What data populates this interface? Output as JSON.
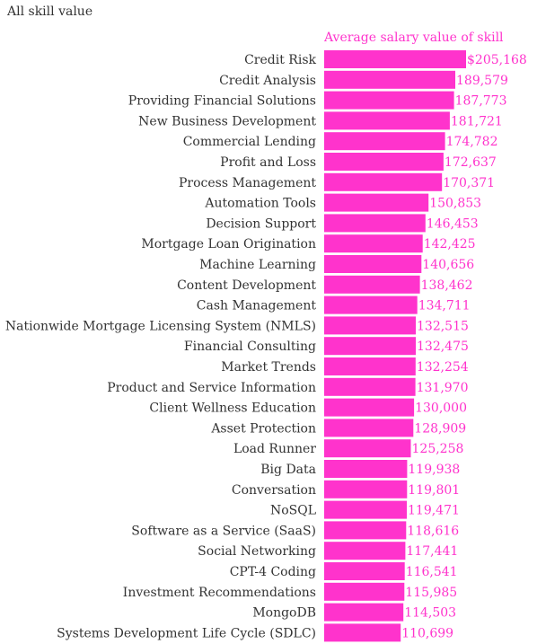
{
  "chart_data": {
    "type": "bar",
    "orientation": "horizontal",
    "title": "All skill value",
    "series": [
      {
        "name": "Average salary value of skill",
        "color": "#ff33cc",
        "values": [
          205168,
          189579,
          187773,
          181721,
          174782,
          172637,
          170371,
          150853,
          146453,
          142425,
          140656,
          138462,
          134711,
          132515,
          132475,
          132254,
          131970,
          130000,
          128909,
          125258,
          119938,
          119801,
          119471,
          118616,
          117441,
          116541,
          115985,
          114503,
          110699
        ]
      }
    ],
    "categories": [
      "Credit Risk",
      "Credit Analysis",
      "Providing Financial Solutions",
      "New Business Development",
      "Commercial Lending",
      "Profit and Loss",
      "Process Management",
      "Automation Tools",
      "Decision Support",
      "Mortgage Loan Origination",
      "Machine Learning",
      "Content Development",
      "Cash Management",
      "Nationwide Mortgage Licensing System (NMLS)",
      "Financial Consulting",
      "Market Trends",
      "Product and Service Information",
      "Client Wellness Education",
      "Asset Protection",
      "Load Runner",
      "Big Data",
      "Conversation",
      "NoSQL",
      "Software as a Service (SaaS)",
      "Social Networking",
      "CPT-4 Coding",
      "Investment Recommendations",
      "MongoDB",
      "Systems Development Life Cycle (SDLC)"
    ],
    "value_labels": [
      "$205,168",
      "189,579",
      "187,773",
      "181,721",
      "174,782",
      "172,637",
      "170,371",
      "150,853",
      "146,453",
      "142,425",
      "140,656",
      "138,462",
      "134,711",
      "132,515",
      "132,475",
      "132,254",
      "131,970",
      "130,000",
      "128,909",
      "125,258",
      "119,938",
      "119,801",
      "119,471",
      "118,616",
      "117,441",
      "116,541",
      "115,985",
      "114,503",
      "110,699"
    ],
    "xlim": [
      0,
      205168
    ],
    "grid": false,
    "legend": "none"
  }
}
